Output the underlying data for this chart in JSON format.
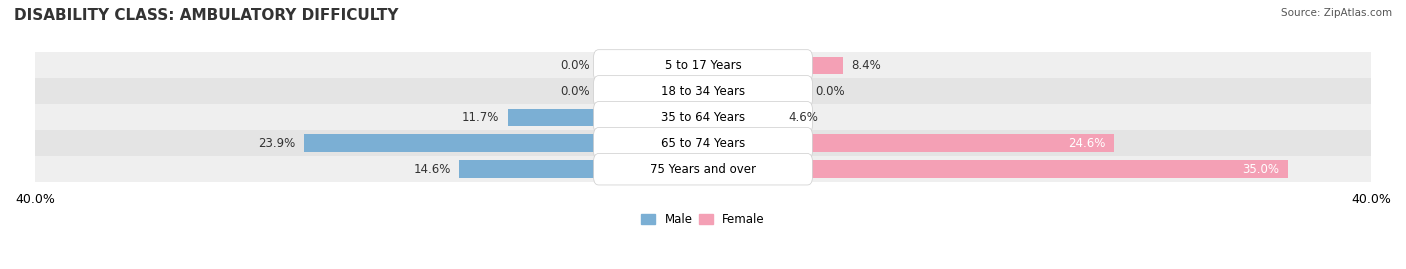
{
  "title": "DISABILITY CLASS: AMBULATORY DIFFICULTY",
  "source": "Source: ZipAtlas.com",
  "categories": [
    "5 to 17 Years",
    "18 to 34 Years",
    "35 to 64 Years",
    "65 to 74 Years",
    "75 Years and over"
  ],
  "male_values": [
    0.0,
    0.0,
    11.7,
    23.9,
    14.6
  ],
  "female_values": [
    8.4,
    0.0,
    4.6,
    24.6,
    35.0
  ],
  "male_color": "#7bafd4",
  "female_color": "#f4a0b5",
  "x_max": 40.0,
  "label_fontsize": 8.5,
  "title_fontsize": 11,
  "axis_label_fontsize": 9,
  "background_color": "#ffffff"
}
